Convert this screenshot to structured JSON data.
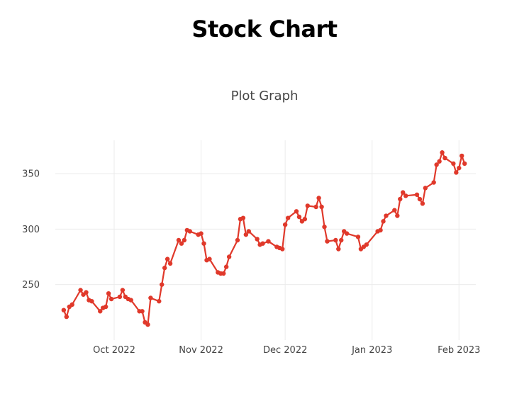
{
  "page": {
    "title": "Stock Chart"
  },
  "chart_data": {
    "type": "line",
    "title": "Plot Graph",
    "xlabel": "",
    "ylabel": "",
    "line_color": "#e0392b",
    "grid": true,
    "legend": "none",
    "x_range": [
      "2022-09-10",
      "2023-02-07"
    ],
    "ylim": [
      200,
      380
    ],
    "x_ticks": [
      {
        "date": "2022-10-01",
        "label": "Oct 2022"
      },
      {
        "date": "2022-11-01",
        "label": "Nov 2022"
      },
      {
        "date": "2022-12-01",
        "label": "Dec 2022"
      },
      {
        "date": "2023-01-01",
        "label": "Jan 2023"
      },
      {
        "date": "2023-02-01",
        "label": "Feb 2023"
      }
    ],
    "y_ticks": [
      250,
      300,
      350
    ],
    "series": [
      {
        "name": "",
        "points": [
          [
            "2022-09-13",
            227
          ],
          [
            "2022-09-14",
            221
          ],
          [
            "2022-09-15",
            230
          ],
          [
            "2022-09-16",
            232
          ],
          [
            "2022-09-19",
            245
          ],
          [
            "2022-09-20",
            241
          ],
          [
            "2022-09-21",
            243
          ],
          [
            "2022-09-22",
            236
          ],
          [
            "2022-09-23",
            235
          ],
          [
            "2022-09-26",
            226
          ],
          [
            "2022-09-27",
            229
          ],
          [
            "2022-09-28",
            230
          ],
          [
            "2022-09-29",
            242
          ],
          [
            "2022-09-30",
            237
          ],
          [
            "2022-10-03",
            239
          ],
          [
            "2022-10-04",
            245
          ],
          [
            "2022-10-05",
            239
          ],
          [
            "2022-10-06",
            237
          ],
          [
            "2022-10-07",
            236
          ],
          [
            "2022-10-10",
            226
          ],
          [
            "2022-10-11",
            226
          ],
          [
            "2022-10-12",
            216
          ],
          [
            "2022-10-13",
            214
          ],
          [
            "2022-10-14",
            238
          ],
          [
            "2022-10-17",
            235
          ],
          [
            "2022-10-18",
            250
          ],
          [
            "2022-10-19",
            265
          ],
          [
            "2022-10-20",
            273
          ],
          [
            "2022-10-21",
            269
          ],
          [
            "2022-10-24",
            290
          ],
          [
            "2022-10-25",
            287
          ],
          [
            "2022-10-26",
            290
          ],
          [
            "2022-10-27",
            299
          ],
          [
            "2022-10-28",
            298
          ],
          [
            "2022-10-31",
            295
          ],
          [
            "2022-11-01",
            296
          ],
          [
            "2022-11-02",
            287
          ],
          [
            "2022-11-03",
            272
          ],
          [
            "2022-11-04",
            273
          ],
          [
            "2022-11-07",
            261
          ],
          [
            "2022-11-08",
            260
          ],
          [
            "2022-11-09",
            260
          ],
          [
            "2022-11-10",
            266
          ],
          [
            "2022-11-11",
            275
          ],
          [
            "2022-11-14",
            290
          ],
          [
            "2022-11-15",
            309
          ],
          [
            "2022-11-16",
            310
          ],
          [
            "2022-11-17",
            295
          ],
          [
            "2022-11-18",
            298
          ],
          [
            "2022-11-21",
            291
          ],
          [
            "2022-11-22",
            286
          ],
          [
            "2022-11-23",
            287
          ],
          [
            "2022-11-25",
            289
          ],
          [
            "2022-11-28",
            284
          ],
          [
            "2022-11-29",
            283
          ],
          [
            "2022-11-30",
            282
          ],
          [
            "2022-12-01",
            304
          ],
          [
            "2022-12-02",
            310
          ],
          [
            "2022-12-05",
            316
          ],
          [
            "2022-12-06",
            311
          ],
          [
            "2022-12-07",
            307
          ],
          [
            "2022-12-08",
            309
          ],
          [
            "2022-12-09",
            321
          ],
          [
            "2022-12-12",
            320
          ],
          [
            "2022-12-13",
            328
          ],
          [
            "2022-12-14",
            320
          ],
          [
            "2022-12-15",
            302
          ],
          [
            "2022-12-16",
            289
          ],
          [
            "2022-12-19",
            290
          ],
          [
            "2022-12-20",
            282
          ],
          [
            "2022-12-21",
            290
          ],
          [
            "2022-12-22",
            298
          ],
          [
            "2022-12-23",
            296
          ],
          [
            "2022-12-27",
            293
          ],
          [
            "2022-12-28",
            282
          ],
          [
            "2022-12-29",
            284
          ],
          [
            "2022-12-30",
            286
          ],
          [
            "2023-01-03",
            298
          ],
          [
            "2023-01-04",
            299
          ],
          [
            "2023-01-05",
            307
          ],
          [
            "2023-01-06",
            312
          ],
          [
            "2023-01-09",
            317
          ],
          [
            "2023-01-10",
            312
          ],
          [
            "2023-01-11",
            327
          ],
          [
            "2023-01-12",
            333
          ],
          [
            "2023-01-13",
            330
          ],
          [
            "2023-01-17",
            331
          ],
          [
            "2023-01-18",
            327
          ],
          [
            "2023-01-19",
            323
          ],
          [
            "2023-01-20",
            337
          ],
          [
            "2023-01-23",
            342
          ],
          [
            "2023-01-24",
            358
          ],
          [
            "2023-01-25",
            361
          ],
          [
            "2023-01-26",
            369
          ],
          [
            "2023-01-27",
            364
          ],
          [
            "2023-01-30",
            359
          ],
          [
            "2023-01-31",
            351
          ],
          [
            "2023-02-01",
            355
          ],
          [
            "2023-02-02",
            366
          ],
          [
            "2023-02-03",
            359
          ]
        ]
      }
    ]
  }
}
